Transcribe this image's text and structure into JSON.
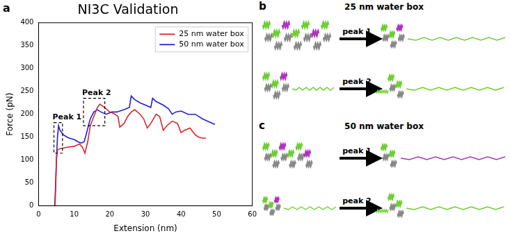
{
  "chart_data": {
    "type": "line",
    "title": "NI3C Validation",
    "x_label": "Extension (nm)",
    "y_label": "Force (pN)",
    "xlim": [
      0,
      60
    ],
    "xticks": [
      0,
      10,
      20,
      30,
      40,
      50,
      60
    ],
    "ylim": [
      0,
      400
    ],
    "yticks": [
      0,
      50,
      100,
      150,
      200,
      250,
      300,
      350,
      400
    ],
    "grid": false,
    "legend": "upper right",
    "series": [
      {
        "name": "25 nm water box",
        "color": "#d62728",
        "marker": "none",
        "line_style": "solid",
        "x": [
          4.6,
          4.8,
          5.0,
          5.3,
          6,
          8,
          10,
          11.5,
          12.3,
          13,
          13.8,
          14.5,
          15.5,
          16.5,
          17.2,
          18.5,
          20,
          21.5,
          22.3,
          22.8,
          24,
          25,
          26,
          27,
          28.5,
          29.5,
          30.5,
          31.5,
          33,
          34,
          35,
          36,
          37.5,
          39,
          40,
          41,
          42.5,
          44,
          45,
          46,
          47
        ],
        "values": [
          0,
          40,
          100,
          122,
          125,
          128,
          130,
          135,
          128,
          115,
          140,
          175,
          195,
          215,
          222,
          215,
          205,
          200,
          195,
          172,
          180,
          195,
          205,
          210,
          200,
          190,
          170,
          180,
          200,
          195,
          165,
          175,
          185,
          180,
          160,
          165,
          170,
          155,
          150,
          148,
          148
        ]
      },
      {
        "name": "50 nm water box",
        "color": "#1f1fd6",
        "marker": "none",
        "line_style": "solid",
        "x": [
          4.5,
          4.7,
          5.0,
          5.3,
          5.6,
          6,
          7,
          8,
          9,
          10,
          11,
          12,
          12.8,
          13.5,
          14.5,
          15.5,
          16.5,
          17.5,
          19,
          20.5,
          22,
          24,
          25.5,
          26,
          27,
          28.5,
          30,
          31.5,
          32,
          33,
          35,
          36.5,
          37.5,
          38.5,
          40,
          42,
          44,
          46,
          48,
          49.5
        ],
        "values": [
          0,
          30,
          100,
          150,
          175,
          165,
          155,
          150,
          147,
          145,
          140,
          137,
          140,
          160,
          190,
          205,
          210,
          205,
          200,
          205,
          205,
          210,
          215,
          240,
          232,
          225,
          220,
          215,
          235,
          228,
          220,
          212,
          200,
          205,
          207,
          200,
          200,
          190,
          183,
          178
        ]
      }
    ],
    "annotations": [
      {
        "text": "Peak 1",
        "x": [
          4.3,
          6.7
        ],
        "y": [
          115,
          182
        ]
      },
      {
        "text": "Peak 2",
        "x": [
          12.6,
          18.6
        ],
        "y": [
          175,
          235
        ]
      }
    ]
  },
  "figure": {
    "panel_label": "a",
    "panels": [
      {
        "label": "b",
        "title": "25 nm water box",
        "steps": [
          "peak 1",
          "peak 2"
        ]
      },
      {
        "label": "c",
        "title": "50 nm water box",
        "steps": [
          "peak 1",
          "peak 2"
        ]
      }
    ]
  }
}
